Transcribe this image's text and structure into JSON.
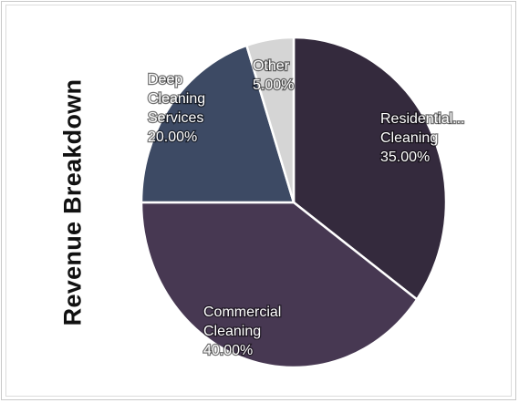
{
  "chart_data": {
    "type": "pie",
    "title": "Revenue Breakdown",
    "slices": [
      {
        "label": "Residential Cleaning",
        "display_label": "Residential...\nCleaning",
        "value": 35.0,
        "value_label": "35.00%",
        "color": "#342a3d"
      },
      {
        "label": "Commercial Cleaning",
        "display_label": "Commercial\nCleaning",
        "value": 40.0,
        "value_label": "40.00%",
        "color": "#473852"
      },
      {
        "label": "Deep Cleaning Services",
        "display_label": "Deep\nCleaning\nServices",
        "value": 20.0,
        "value_label": "20.00%",
        "color": "#3d4a64"
      },
      {
        "label": "Other",
        "display_label": "Other",
        "value": 5.0,
        "value_label": "5.00%",
        "color": "#d5d5d5"
      }
    ],
    "start_angle_deg": 0,
    "direction": "clockwise",
    "slice_border_color": "#ffffff"
  }
}
